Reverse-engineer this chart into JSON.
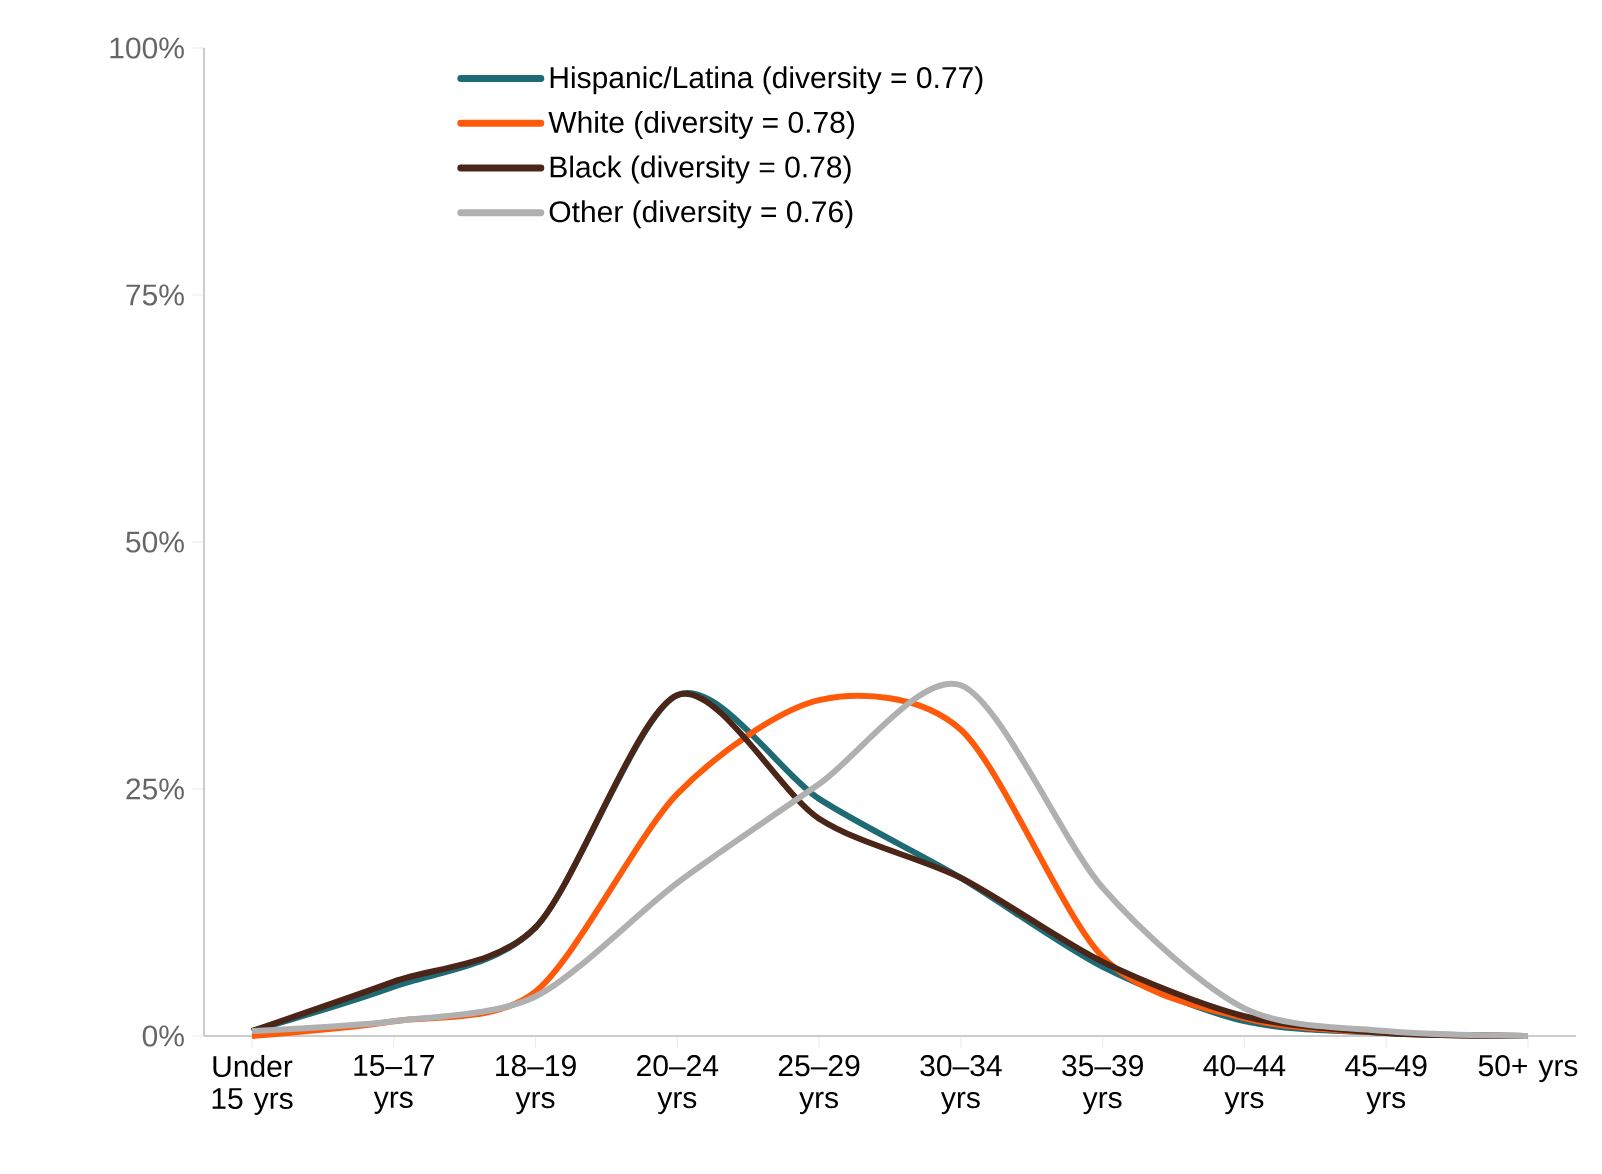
{
  "chart_data": {
    "type": "line",
    "categories": [
      "Under 15 yrs",
      "15–17 yrs",
      "18–19 yrs",
      "20–24 yrs",
      "25–29 yrs",
      "30–34 yrs",
      "35–39 yrs",
      "40–44 yrs",
      "45–49 yrs",
      "50+ yrs"
    ],
    "series": [
      {
        "name": "Hispanic/Latina (diversity = 0.77)",
        "color": "#1f6b75",
        "values": [
          0.5,
          5,
          11,
          34.5,
          24,
          16,
          7,
          1.5,
          0.3,
          0
        ]
      },
      {
        "name": "White (diversity = 0.78)",
        "color": "#ff5a0a",
        "values": [
          0,
          1.5,
          4.5,
          24.5,
          34,
          31,
          8,
          1.8,
          0.3,
          0
        ]
      },
      {
        "name": "Black (diversity = 0.78)",
        "color": "#4a2518",
        "values": [
          0.5,
          5.5,
          11,
          34.5,
          22,
          16,
          7.5,
          2,
          0.3,
          0
        ]
      },
      {
        "name": "Other (diversity = 0.76)",
        "color": "#b0b0b0",
        "values": [
          0.5,
          1.5,
          4,
          15.5,
          25.5,
          35.5,
          15,
          2.8,
          0.5,
          0
        ]
      }
    ],
    "ylim": [
      0,
      100
    ],
    "yticks": [
      {
        "value": 0,
        "label": "0%"
      },
      {
        "value": 25,
        "label": "25%"
      },
      {
        "value": 50,
        "label": "50%"
      },
      {
        "value": 75,
        "label": "75%"
      },
      {
        "value": 100,
        "label": "100%"
      }
    ],
    "grid": false,
    "legend": "top",
    "marker": "none",
    "line_style": "solid"
  }
}
